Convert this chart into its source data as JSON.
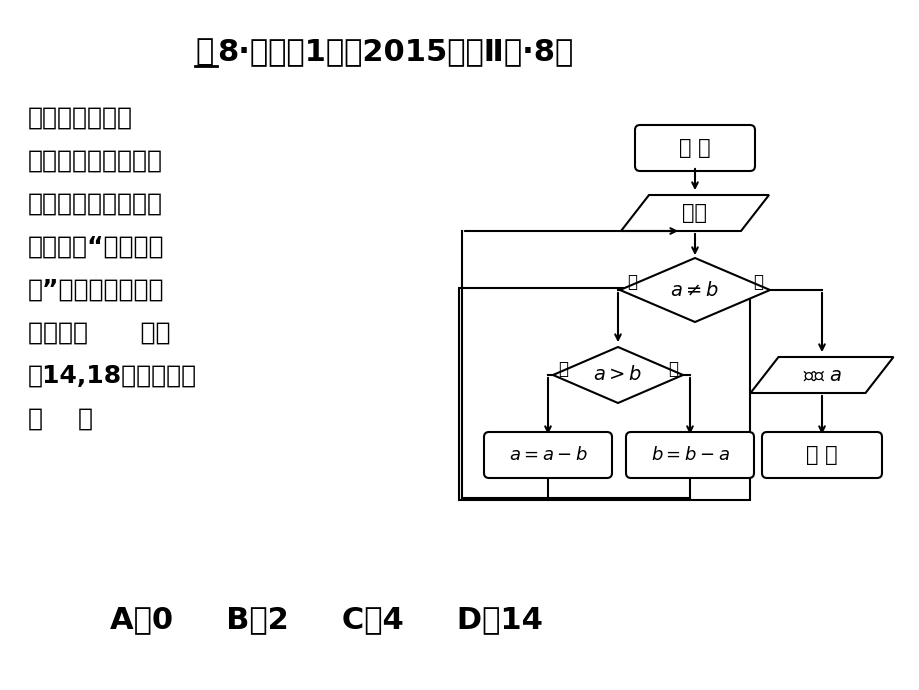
{
  "bg_color": "#ffffff",
  "title_li": "理",
  "title_rest": "8·文案例1：　2015课标Ⅱ卷·8、",
  "left_text_lines": [
    "右边程序框图的",
    "算法思路源于我国古",
    "代数学名著《九章算",
    "术》中的“更相减损",
    "术”执行该程序框图",
    "，若输入      分别",
    "为14,18，则输出的"
  ],
  "question_mark": "（    ）",
  "answers": "A．0     B．2     C．4     D．14",
  "font_size_body": 18,
  "font_size_answers": 22
}
